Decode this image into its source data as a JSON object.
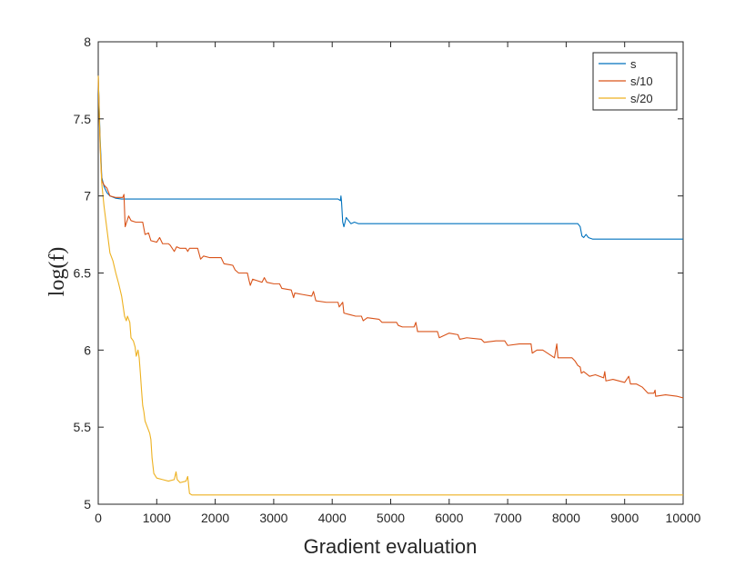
{
  "chart_data": {
    "type": "line",
    "title": "",
    "xlabel": "Gradient evaluation",
    "ylabel": "log(f)",
    "xlim": [
      0,
      10000
    ],
    "ylim": [
      5,
      8
    ],
    "xticks": [
      0,
      1000,
      2000,
      3000,
      4000,
      5000,
      6000,
      7000,
      8000,
      9000,
      10000
    ],
    "yticks": [
      5,
      5.5,
      6,
      6.5,
      7,
      7.5,
      8
    ],
    "ytick_labels": [
      "5",
      "5.5",
      "6",
      "6.5",
      "7",
      "7.5",
      "8"
    ],
    "grid": false,
    "legend_position": "top-right",
    "series": [
      {
        "name": "s",
        "color": "#0072bd",
        "points": [
          [
            0,
            7.78
          ],
          [
            30,
            7.4
          ],
          [
            60,
            7.12
          ],
          [
            100,
            7.06
          ],
          [
            150,
            7.02
          ],
          [
            200,
            7.0
          ],
          [
            300,
            6.985
          ],
          [
            400,
            6.98
          ],
          [
            1000,
            6.98
          ],
          [
            2000,
            6.98
          ],
          [
            3000,
            6.98
          ],
          [
            4100,
            6.98
          ],
          [
            4140,
            6.97
          ],
          [
            4150,
            7.0
          ],
          [
            4160,
            6.96
          ],
          [
            4180,
            6.83
          ],
          [
            4200,
            6.8
          ],
          [
            4240,
            6.86
          ],
          [
            4280,
            6.84
          ],
          [
            4320,
            6.82
          ],
          [
            4380,
            6.83
          ],
          [
            4450,
            6.82
          ],
          [
            4600,
            6.82
          ],
          [
            6000,
            6.82
          ],
          [
            8200,
            6.82
          ],
          [
            8240,
            6.8
          ],
          [
            8270,
            6.74
          ],
          [
            8300,
            6.73
          ],
          [
            8340,
            6.75
          ],
          [
            8380,
            6.73
          ],
          [
            8450,
            6.72
          ],
          [
            10000,
            6.72
          ]
        ]
      },
      {
        "name": "s/10",
        "color": "#d95319",
        "points": [
          [
            0,
            7.78
          ],
          [
            30,
            7.35
          ],
          [
            60,
            7.1
          ],
          [
            100,
            7.07
          ],
          [
            150,
            7.05
          ],
          [
            200,
            7.0
          ],
          [
            300,
            6.99
          ],
          [
            420,
            6.99
          ],
          [
            440,
            7.01
          ],
          [
            460,
            6.8
          ],
          [
            520,
            6.87
          ],
          [
            560,
            6.84
          ],
          [
            640,
            6.83
          ],
          [
            760,
            6.83
          ],
          [
            800,
            6.75
          ],
          [
            860,
            6.76
          ],
          [
            900,
            6.71
          ],
          [
            1000,
            6.7
          ],
          [
            1050,
            6.73
          ],
          [
            1100,
            6.69
          ],
          [
            1200,
            6.69
          ],
          [
            1230,
            6.68
          ],
          [
            1300,
            6.64
          ],
          [
            1340,
            6.67
          ],
          [
            1400,
            6.66
          ],
          [
            1450,
            6.66
          ],
          [
            1500,
            6.66
          ],
          [
            1530,
            6.64
          ],
          [
            1560,
            6.66
          ],
          [
            1700,
            6.66
          ],
          [
            1750,
            6.59
          ],
          [
            1800,
            6.61
          ],
          [
            1900,
            6.6
          ],
          [
            1950,
            6.6
          ],
          [
            2100,
            6.6
          ],
          [
            2150,
            6.56
          ],
          [
            2300,
            6.55
          ],
          [
            2340,
            6.52
          ],
          [
            2400,
            6.5
          ],
          [
            2550,
            6.5
          ],
          [
            2580,
            6.45
          ],
          [
            2600,
            6.42
          ],
          [
            2640,
            6.46
          ],
          [
            2720,
            6.45
          ],
          [
            2800,
            6.44
          ],
          [
            2840,
            6.47
          ],
          [
            2880,
            6.44
          ],
          [
            3000,
            6.43
          ],
          [
            3100,
            6.43
          ],
          [
            3140,
            6.4
          ],
          [
            3300,
            6.39
          ],
          [
            3340,
            6.34
          ],
          [
            3360,
            6.37
          ],
          [
            3500,
            6.36
          ],
          [
            3650,
            6.35
          ],
          [
            3680,
            6.38
          ],
          [
            3720,
            6.32
          ],
          [
            3900,
            6.31
          ],
          [
            4100,
            6.31
          ],
          [
            4120,
            6.28
          ],
          [
            4180,
            6.31
          ],
          [
            4200,
            6.24
          ],
          [
            4300,
            6.23
          ],
          [
            4400,
            6.22
          ],
          [
            4500,
            6.22
          ],
          [
            4530,
            6.19
          ],
          [
            4600,
            6.21
          ],
          [
            4800,
            6.2
          ],
          [
            4850,
            6.18
          ],
          [
            5000,
            6.18
          ],
          [
            5100,
            6.18
          ],
          [
            5130,
            6.16
          ],
          [
            5200,
            6.15
          ],
          [
            5400,
            6.15
          ],
          [
            5430,
            6.18
          ],
          [
            5460,
            6.12
          ],
          [
            5600,
            6.12
          ],
          [
            5800,
            6.12
          ],
          [
            5830,
            6.08
          ],
          [
            6000,
            6.11
          ],
          [
            6150,
            6.1
          ],
          [
            6180,
            6.07
          ],
          [
            6300,
            6.08
          ],
          [
            6550,
            6.07
          ],
          [
            6600,
            6.05
          ],
          [
            6800,
            6.06
          ],
          [
            6950,
            6.06
          ],
          [
            7000,
            6.03
          ],
          [
            7200,
            6.04
          ],
          [
            7400,
            6.04
          ],
          [
            7420,
            5.98
          ],
          [
            7500,
            6.0
          ],
          [
            7600,
            6.0
          ],
          [
            7800,
            5.95
          ],
          [
            7840,
            6.04
          ],
          [
            7860,
            5.95
          ],
          [
            8100,
            5.95
          ],
          [
            8150,
            5.93
          ],
          [
            8200,
            5.9
          ],
          [
            8240,
            5.89
          ],
          [
            8260,
            5.85
          ],
          [
            8300,
            5.86
          ],
          [
            8400,
            5.83
          ],
          [
            8500,
            5.84
          ],
          [
            8640,
            5.82
          ],
          [
            8660,
            5.86
          ],
          [
            8680,
            5.8
          ],
          [
            8800,
            5.81
          ],
          [
            9000,
            5.79
          ],
          [
            9070,
            5.83
          ],
          [
            9100,
            5.78
          ],
          [
            9200,
            5.78
          ],
          [
            9300,
            5.76
          ],
          [
            9400,
            5.72
          ],
          [
            9500,
            5.72
          ],
          [
            9520,
            5.74
          ],
          [
            9530,
            5.7
          ],
          [
            9700,
            5.71
          ],
          [
            9900,
            5.7
          ],
          [
            10000,
            5.69
          ]
        ]
      },
      {
        "name": "s/20",
        "color": "#edb120",
        "points": [
          [
            0,
            7.78
          ],
          [
            20,
            7.5
          ],
          [
            40,
            7.25
          ],
          [
            60,
            7.08
          ],
          [
            100,
            6.93
          ],
          [
            150,
            6.78
          ],
          [
            200,
            6.63
          ],
          [
            250,
            6.58
          ],
          [
            300,
            6.5
          ],
          [
            350,
            6.43
          ],
          [
            400,
            6.35
          ],
          [
            450,
            6.22
          ],
          [
            480,
            6.19
          ],
          [
            500,
            6.22
          ],
          [
            540,
            6.18
          ],
          [
            560,
            6.08
          ],
          [
            600,
            6.06
          ],
          [
            630,
            6.02
          ],
          [
            650,
            5.96
          ],
          [
            680,
            6.0
          ],
          [
            700,
            5.95
          ],
          [
            720,
            5.85
          ],
          [
            740,
            5.74
          ],
          [
            760,
            5.64
          ],
          [
            780,
            5.6
          ],
          [
            800,
            5.54
          ],
          [
            830,
            5.51
          ],
          [
            850,
            5.49
          ],
          [
            880,
            5.46
          ],
          [
            900,
            5.42
          ],
          [
            920,
            5.3
          ],
          [
            950,
            5.2
          ],
          [
            1000,
            5.17
          ],
          [
            1100,
            5.16
          ],
          [
            1200,
            5.15
          ],
          [
            1300,
            5.16
          ],
          [
            1330,
            5.21
          ],
          [
            1350,
            5.16
          ],
          [
            1400,
            5.14
          ],
          [
            1500,
            5.15
          ],
          [
            1530,
            5.18
          ],
          [
            1560,
            5.07
          ],
          [
            1600,
            5.06
          ],
          [
            2000,
            5.06
          ],
          [
            4000,
            5.06
          ],
          [
            6000,
            5.06
          ],
          [
            8000,
            5.06
          ],
          [
            10000,
            5.06
          ]
        ]
      }
    ]
  }
}
